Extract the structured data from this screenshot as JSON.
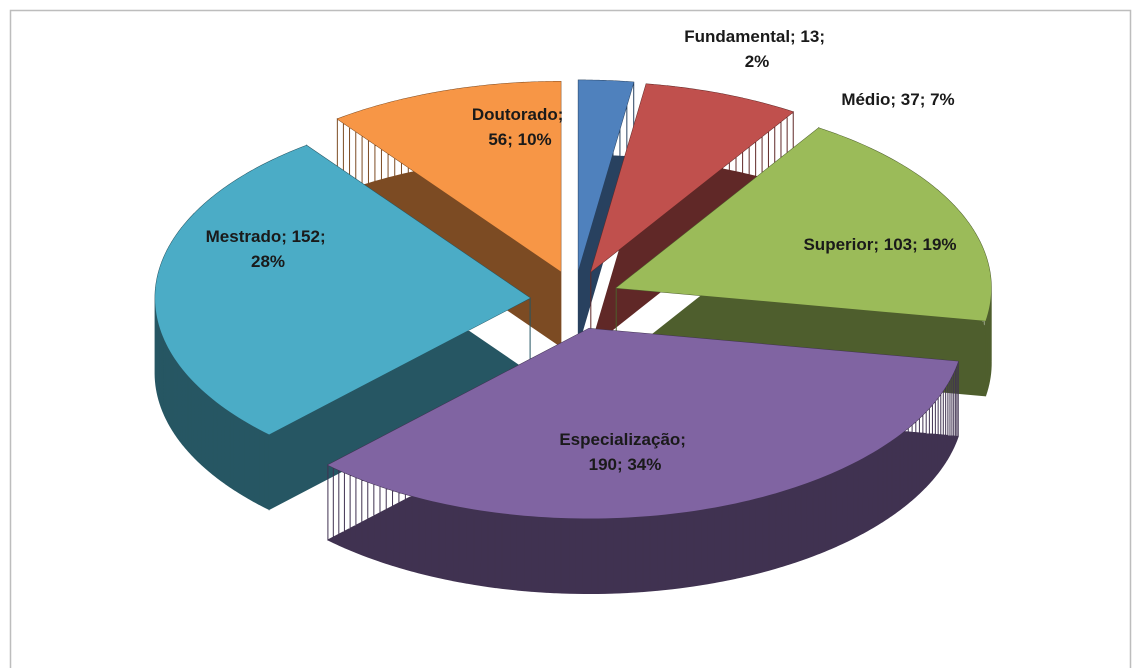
{
  "chart_data": {
    "type": "pie",
    "values": [
      13,
      37,
      103,
      190,
      152,
      56
    ],
    "value_labels": [
      "Fundamental; 13; 2%",
      "Médio; 37; 7%",
      "Superior; 103; 19%",
      "Especialização; 190; 34%",
      "Mestrado; 152; 28%",
      "Doutorado; 56; 10%"
    ],
    "colors": [
      "#4f81bd",
      "#c0504d",
      "#9bbb59",
      "#8064a2",
      "#4bacc6",
      "#f79646"
    ]
  }
}
